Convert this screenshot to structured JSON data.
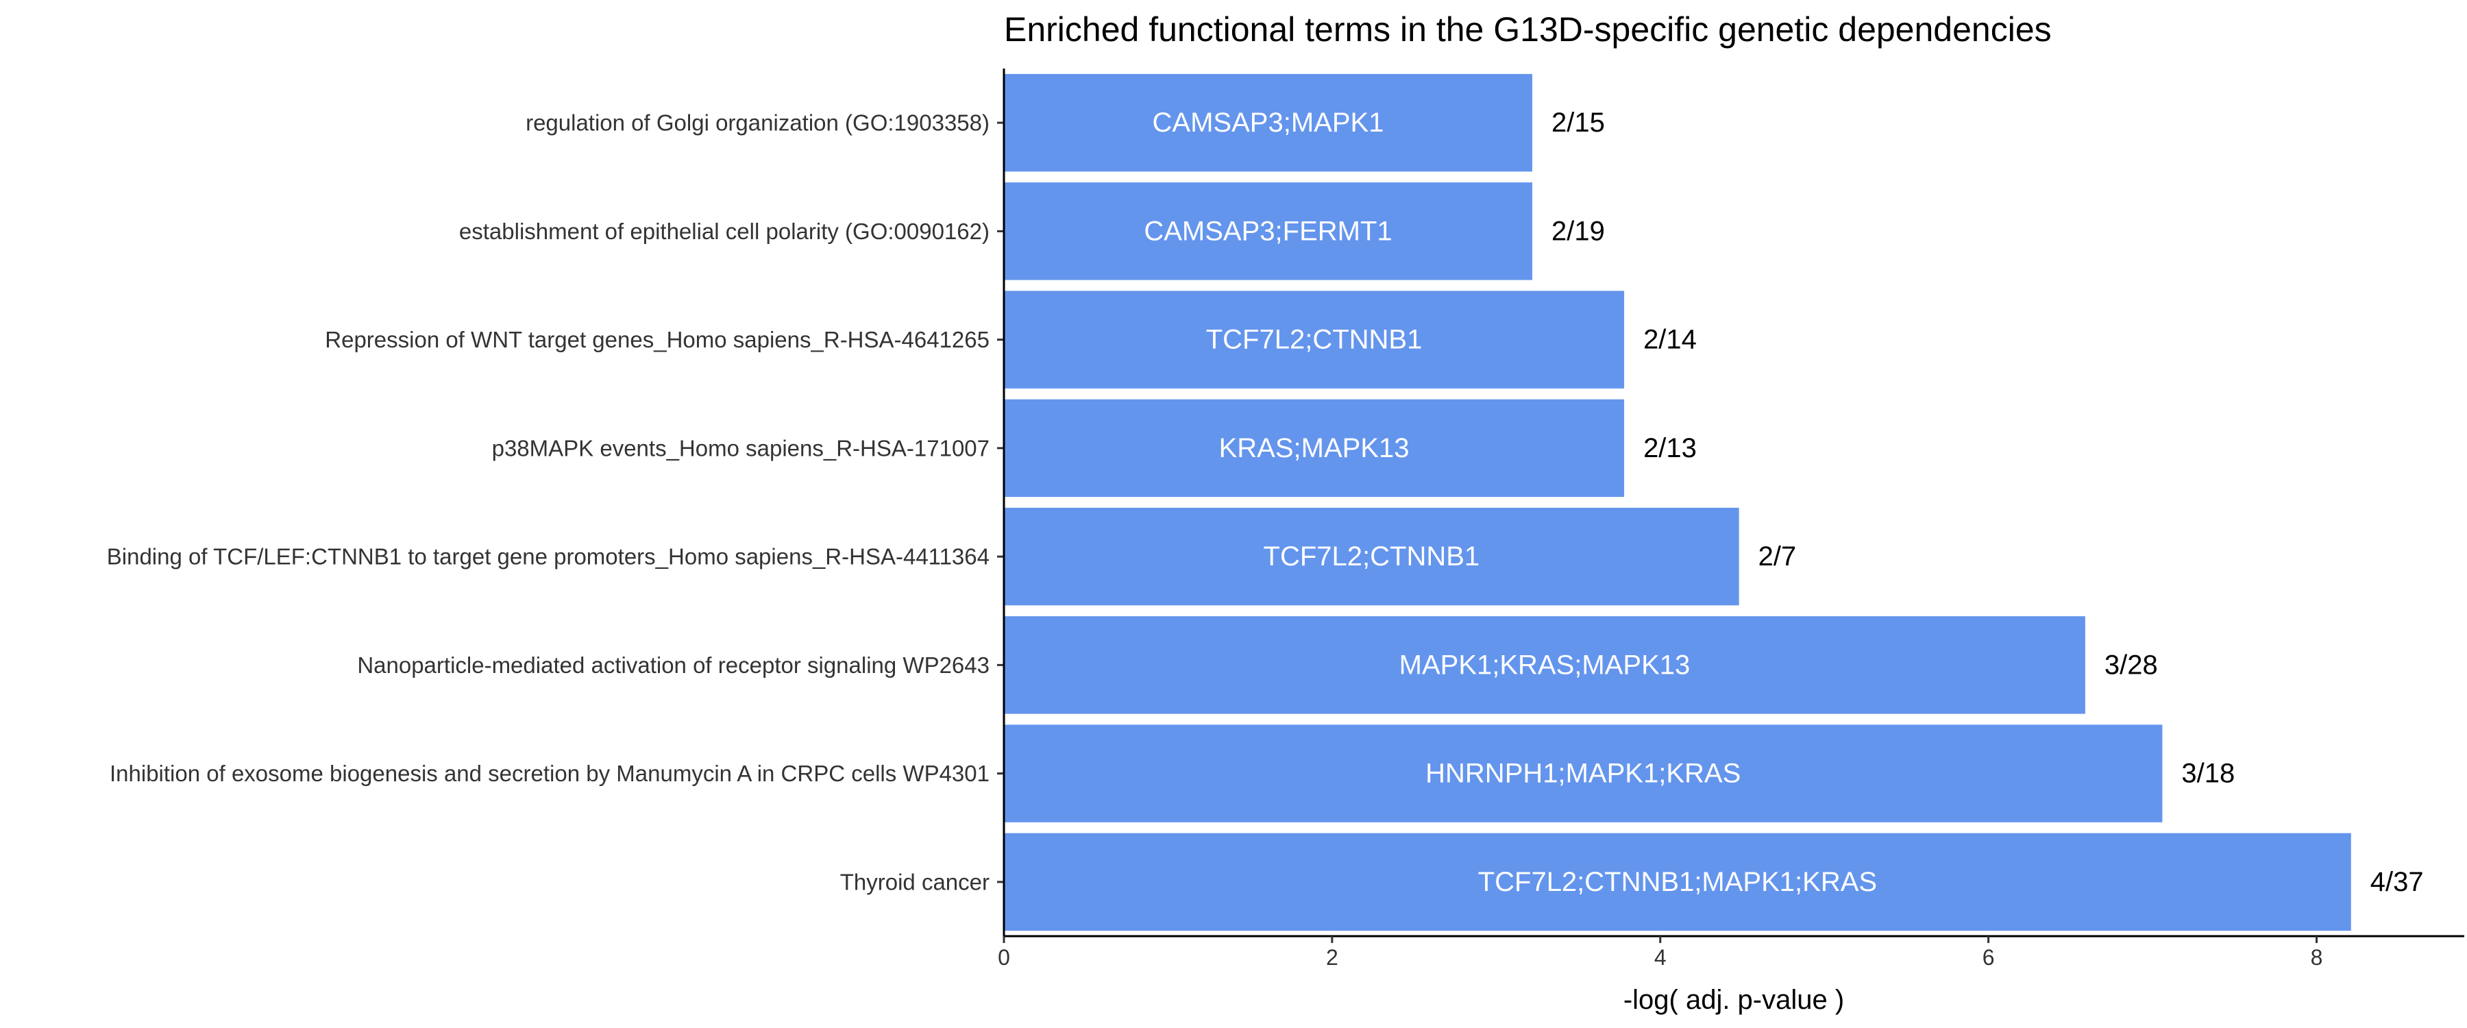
{
  "chart_data": {
    "type": "bar",
    "orientation": "horizontal",
    "title": "Enriched functional terms in the G13D-specific genetic dependencies",
    "xlabel": "-log( adj. p-value )",
    "ylabel": "",
    "xlim": [
      0,
      8.9
    ],
    "xticks": [
      0,
      2,
      4,
      6,
      8
    ],
    "grid": false,
    "bar_color": "#6495ED",
    "categories": [
      "regulation of Golgi organization (GO:1903358)",
      "establishment of epithelial cell polarity (GO:0090162)",
      "Repression of WNT target genes_Homo sapiens_R-HSA-4641265",
      "p38MAPK events_Homo sapiens_R-HSA-171007",
      "Binding of TCF/LEF:CTNNB1 to target gene promoters_Homo sapiens_R-HSA-4411364",
      "Nanoparticle-mediated activation of receptor signaling WP2643",
      "Inhibition of exosome biogenesis and secretion by Manumycin A in CRPC cells WP4301",
      "Thyroid cancer"
    ],
    "values": [
      3.22,
      3.22,
      3.78,
      3.78,
      4.48,
      6.59,
      7.06,
      8.21
    ],
    "genes": [
      "CAMSAP3;MAPK1",
      "CAMSAP3;FERMT1",
      "TCF7L2;CTNNB1",
      "KRAS;MAPK13",
      "TCF7L2;CTNNB1",
      "MAPK1;KRAS;MAPK13",
      "HNRNPH1;MAPK1;KRAS",
      "TCF7L2;CTNNB1;MAPK1;KRAS"
    ],
    "overlap": [
      "2/15",
      "2/19",
      "2/14",
      "2/13",
      "2/7",
      "3/28",
      "3/18",
      "4/37"
    ]
  }
}
